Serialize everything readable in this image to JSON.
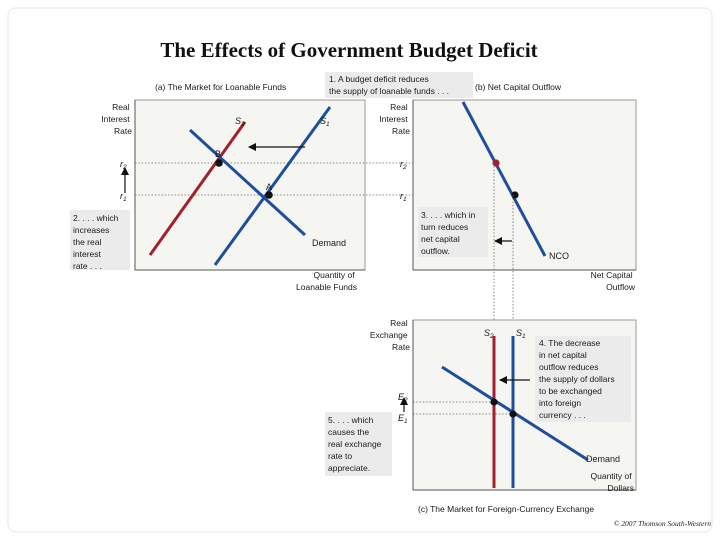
{
  "title": "The Effects of Government Budget Deficit",
  "credit": "© 2007 Thomson South-Western",
  "colors": {
    "s2": "#a31f2e",
    "s1": "#1f4e9a",
    "demand": "#1f4e9a",
    "nco": "#1f4e9a",
    "panel": "#f5f5f2"
  },
  "panel_a": {
    "heading": "(a) The Market for Loanable Funds",
    "y_label": [
      "Real",
      "Interest",
      "Rate"
    ],
    "x_label": [
      "Quantity of",
      "Loanable Funds"
    ],
    "tick_r2": "r",
    "tick_r2_sub": "2",
    "tick_r1": "r",
    "tick_r1_sub": "1",
    "s2_label": "S",
    "s2_sub": "2",
    "s1_label": "S",
    "s1_sub": "1",
    "demand_label": "Demand",
    "point_b": "B",
    "point_a": "A",
    "note_top": [
      "1. A budget deficit reduces",
      "the supply of loanable funds . . ."
    ],
    "note_left": [
      "2. . . . which",
      "increases",
      "the real",
      "interest",
      "rate . . ."
    ]
  },
  "panel_b": {
    "heading": "(b) Net Capital Outflow",
    "y_label": [
      "Real",
      "Interest",
      "Rate"
    ],
    "x_label": [
      "Net Capital",
      "Outflow"
    ],
    "tick_r2": "r",
    "tick_r2_sub": "2",
    "tick_r1": "r",
    "tick_r1_sub": "1",
    "nco_label": "NCO",
    "note": [
      "3. . . . which in",
      "turn reduces",
      "net capital",
      "outflow."
    ]
  },
  "panel_c": {
    "heading": "(c) The Market for Foreign-Currency Exchange",
    "y_label": [
      "Real",
      "Exchange",
      "Rate"
    ],
    "x_label": [
      "Quantity of",
      "Dollars"
    ],
    "tick_e2": "E",
    "tick_e2_sub": "2",
    "tick_e1": "E",
    "tick_e1_sub": "1",
    "s2_label": "S",
    "s2_sub": "2",
    "s1_label": "S",
    "s1_sub": "1",
    "demand_label": "Demand",
    "note_left": [
      "5. . . . which",
      "causes the",
      "real exchange",
      "rate to",
      "appreciate."
    ],
    "note_right": [
      "4. The decrease",
      "in net capital",
      "outflow reduces",
      "the supply of dollars",
      "to be exchanged",
      "into foreign",
      "currency . . ."
    ]
  }
}
